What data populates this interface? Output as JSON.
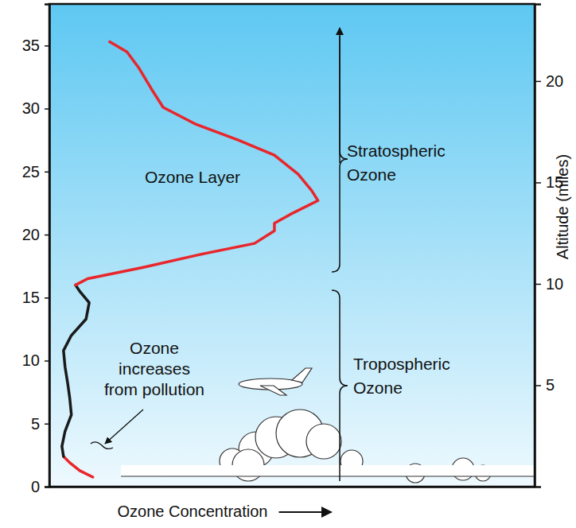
{
  "chart_data": {
    "type": "line",
    "x_label": "Ozone Concentration",
    "y2_label": "Altitude (miles)",
    "xlim": [
      0,
      9.25
    ],
    "ylim": [
      0,
      38.3
    ],
    "yticks": [
      0,
      5,
      10,
      15,
      20,
      25,
      30,
      35
    ],
    "y2lim": [
      0,
      23.8
    ],
    "y2ticks": [
      5,
      10,
      15,
      20
    ],
    "tick_labels": "y",
    "series": [
      {
        "color": "#e8262b",
        "x": [
          0.83,
          0.58,
          0.39,
          0.27
        ],
        "values": [
          0.76,
          1.27,
          1.9,
          2.4
        ]
      },
      {
        "color": "#1a1a1a",
        "x": [
          0.27,
          0.24,
          0.3,
          0.42,
          0.39,
          0.35,
          0.3,
          0.27,
          0.42,
          0.7,
          0.76,
          0.58,
          0.5
        ],
        "values": [
          2.4,
          3.2,
          4.4,
          5.7,
          7.0,
          8.2,
          9.5,
          10.8,
          12.0,
          13.3,
          14.6,
          15.5,
          16.0
        ]
      },
      {
        "color": "#e8262b",
        "x": [
          0.5,
          0.73,
          1.79,
          2.85,
          3.91,
          4.29,
          4.29,
          4.59,
          5.12,
          5.0,
          4.74,
          4.29,
          3.6,
          2.77,
          2.17,
          1.94,
          1.71,
          1.48,
          1.15
        ],
        "values": [
          16.0,
          16.5,
          17.4,
          18.4,
          19.3,
          20.3,
          20.9,
          21.6,
          22.7,
          23.5,
          24.8,
          26.3,
          27.5,
          28.8,
          30.1,
          31.6,
          33.2,
          34.5,
          35.3
        ]
      }
    ],
    "annotations": [
      [
        "Ozone Layer"
      ],
      [
        "Stratospheric",
        "Ozone"
      ],
      [
        "Tropospheric",
        "Ozone"
      ],
      [
        "Ozone",
        "increases",
        "from pollution"
      ]
    ]
  }
}
